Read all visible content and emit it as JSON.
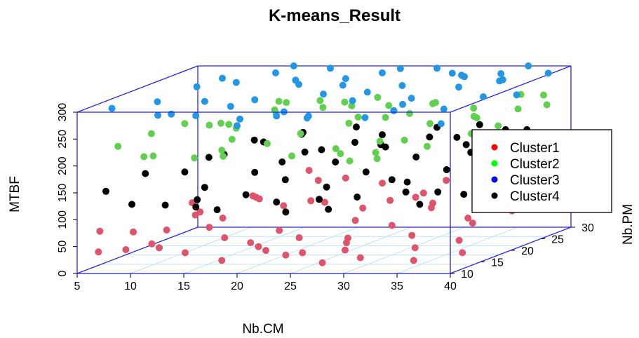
{
  "chart_data": {
    "type": "scatter",
    "title": "K-means_Result",
    "xlabel": "Nb.CM",
    "ylabel": "Nb.PM",
    "zlabel": "MTBF",
    "xlim": [
      5,
      40
    ],
    "ylim": [
      10,
      30
    ],
    "zlim": [
      0,
      300
    ],
    "x_ticks": [
      "5",
      "10",
      "15",
      "20",
      "25",
      "30",
      "35",
      "40"
    ],
    "y_ticks": [
      "10",
      "15",
      "20",
      "25",
      "30"
    ],
    "z_ticks": [
      "0",
      "50",
      "100",
      "150",
      "200",
      "250",
      "300"
    ],
    "grid": true,
    "legend_position": "right",
    "series": [
      {
        "name": "Cluster1",
        "color": "#df536b",
        "legend_color": "#ff0000",
        "points": [
          [
            6,
            12,
            70
          ],
          [
            8,
            14,
            60
          ],
          [
            9,
            11,
            40
          ],
          [
            10,
            16,
            55
          ],
          [
            11,
            13,
            35
          ],
          [
            12,
            18,
            80
          ],
          [
            13,
            20,
            60
          ],
          [
            14,
            12,
            30
          ],
          [
            15,
            22,
            90
          ],
          [
            16,
            15,
            45
          ],
          [
            17,
            19,
            100
          ],
          [
            18,
            11,
            20
          ],
          [
            19,
            24,
            75
          ],
          [
            20,
            17,
            50
          ],
          [
            21,
            13,
            30
          ],
          [
            22,
            21,
            85
          ],
          [
            23,
            15,
            45
          ],
          [
            24,
            27,
            95
          ],
          [
            25,
            12,
            30
          ],
          [
            26,
            19,
            60
          ],
          [
            27,
            23,
            80
          ],
          [
            28,
            14,
            40
          ],
          [
            29,
            25,
            85
          ],
          [
            30,
            18,
            55
          ],
          [
            31,
            11,
            25
          ],
          [
            32,
            21,
            75
          ],
          [
            33,
            16,
            45
          ],
          [
            34,
            26,
            95
          ],
          [
            35,
            13,
            35
          ],
          [
            36,
            20,
            60
          ],
          [
            37,
            24,
            80
          ],
          [
            38,
            15,
            40
          ],
          [
            39,
            22,
            65
          ],
          [
            40,
            12,
            30
          ],
          [
            13,
            25,
            80
          ],
          [
            18,
            27,
            100
          ],
          [
            22,
            10,
            50
          ],
          [
            26,
            29,
            60
          ],
          [
            30,
            27,
            100
          ],
          [
            34,
            29,
            80
          ],
          [
            38,
            28,
            100
          ],
          [
            16,
            29,
            110
          ],
          [
            24,
            11,
            30
          ],
          [
            9,
            22,
            80
          ],
          [
            11,
            19,
            70
          ],
          [
            28,
            10,
            20
          ],
          [
            31,
            23,
            75
          ],
          [
            36,
            11,
            20
          ],
          [
            20,
            28,
            100
          ],
          [
            14,
            16,
            60
          ],
          [
            27,
            16,
            40
          ],
          [
            33,
            28,
            110
          ],
          [
            37,
            19,
            55
          ],
          [
            29,
            12,
            35
          ],
          [
            25,
            22,
            70
          ],
          [
            19,
            14,
            40
          ],
          [
            12,
            10,
            55
          ],
          [
            7,
            10,
            40
          ],
          [
            17,
            23,
            70
          ],
          [
            35,
            27,
            85
          ]
        ]
      },
      {
        "name": "Cluster2",
        "color": "#61d04f",
        "legend_color": "#00ff00",
        "points": [
          [
            6,
            15,
            215
          ],
          [
            8,
            17,
            230
          ],
          [
            9,
            14,
            200
          ],
          [
            10,
            19,
            240
          ],
          [
            11,
            12,
            210
          ],
          [
            13,
            21,
            230
          ],
          [
            14,
            16,
            250
          ],
          [
            15,
            18,
            215
          ],
          [
            16,
            24,
            260
          ],
          [
            17,
            13,
            205
          ],
          [
            18,
            20,
            255
          ],
          [
            19,
            26,
            240
          ],
          [
            20,
            15,
            220
          ],
          [
            21,
            22,
            270
          ],
          [
            22,
            17,
            230
          ],
          [
            23,
            28,
            250
          ],
          [
            24,
            12,
            210
          ],
          [
            25,
            19,
            280
          ],
          [
            26,
            24,
            230
          ],
          [
            27,
            14,
            215
          ],
          [
            28,
            21,
            265
          ],
          [
            29,
            27,
            245
          ],
          [
            30,
            16,
            220
          ],
          [
            31,
            23,
            260
          ],
          [
            32,
            12,
            205
          ],
          [
            33,
            19,
            240
          ],
          [
            34,
            25,
            225
          ],
          [
            35,
            15,
            215
          ],
          [
            36,
            21,
            245
          ],
          [
            37,
            27,
            260
          ],
          [
            38,
            17,
            230
          ],
          [
            39,
            23,
            250
          ],
          [
            12,
            24,
            210
          ],
          [
            15,
            27,
            245
          ],
          [
            18,
            11,
            225
          ],
          [
            22,
            25,
            215
          ],
          [
            26,
            28,
            220
          ],
          [
            30,
            11,
            205
          ],
          [
            34,
            13,
            235
          ],
          [
            38,
            29,
            250
          ],
          [
            40,
            26,
            245
          ],
          [
            20,
            29,
            230
          ],
          [
            24,
            23,
            235
          ],
          [
            28,
            13,
            210
          ],
          [
            10,
            25,
            215
          ],
          [
            16,
            10,
            215
          ],
          [
            32,
            28,
            230
          ],
          [
            36,
            25,
            210
          ],
          [
            33,
            10,
            225
          ],
          [
            19,
            18,
            270
          ]
        ]
      },
      {
        "name": "Cluster3",
        "color": "#2297e6",
        "legend_color": "#0000ff",
        "points": [
          [
            6,
            14,
            290
          ],
          [
            8,
            18,
            285
          ],
          [
            10,
            21,
            300
          ],
          [
            11,
            15,
            275
          ],
          [
            12,
            24,
            295
          ],
          [
            13,
            17,
            290
          ],
          [
            14,
            27,
            300
          ],
          [
            15,
            12,
            285
          ],
          [
            16,
            20,
            280
          ],
          [
            17,
            25,
            295
          ],
          [
            18,
            14,
            270
          ],
          [
            19,
            22,
            300
          ],
          [
            20,
            28,
            285
          ],
          [
            21,
            16,
            275
          ],
          [
            22,
            24,
            290
          ],
          [
            23,
            19,
            295
          ],
          [
            24,
            27,
            300
          ],
          [
            25,
            13,
            280
          ],
          [
            26,
            21,
            290
          ],
          [
            27,
            25,
            285
          ],
          [
            28,
            15,
            300
          ],
          [
            29,
            23,
            270
          ],
          [
            30,
            28,
            295
          ],
          [
            31,
            18,
            280
          ],
          [
            32,
            26,
            300
          ],
          [
            33,
            13,
            290
          ],
          [
            34,
            22,
            295
          ],
          [
            35,
            27,
            285
          ],
          [
            36,
            16,
            280
          ],
          [
            37,
            24,
            300
          ],
          [
            38,
            19,
            290
          ],
          [
            39,
            28,
            295
          ],
          [
            40,
            21,
            285
          ],
          [
            18,
            29,
            300
          ],
          [
            24,
            30,
            295
          ],
          [
            30,
            30,
            280
          ],
          [
            36,
            30,
            300
          ],
          [
            20,
            10,
            275
          ],
          [
            26,
            11,
            285
          ],
          [
            32,
            10,
            290
          ],
          [
            14,
            30,
            300
          ],
          [
            9,
            27,
            290
          ],
          [
            28,
            29,
            300
          ],
          [
            34,
            29,
            290
          ],
          [
            16,
            16,
            285
          ],
          [
            22,
            13,
            280
          ],
          [
            12,
            11,
            290
          ],
          [
            38,
            12,
            270
          ]
        ]
      },
      {
        "name": "Cluster4",
        "color": "#000000",
        "legend_color": "#000000",
        "points": [
          [
            6,
            13,
            140
          ],
          [
            8,
            16,
            160
          ],
          [
            9,
            12,
            120
          ],
          [
            10,
            19,
            150
          ],
          [
            11,
            14,
            110
          ],
          [
            12,
            22,
            170
          ],
          [
            13,
            17,
            130
          ],
          [
            14,
            25,
            180
          ],
          [
            15,
            12,
            115
          ],
          [
            16,
            20,
            145
          ],
          [
            17,
            26,
            190
          ],
          [
            18,
            15,
            125
          ],
          [
            19,
            23,
            170
          ],
          [
            20,
            18,
            140
          ],
          [
            21,
            28,
            195
          ],
          [
            22,
            13,
            120
          ],
          [
            23,
            21,
            160
          ],
          [
            24,
            27,
            185
          ],
          [
            25,
            16,
            135
          ],
          [
            26,
            24,
            175
          ],
          [
            27,
            19,
            150
          ],
          [
            28,
            29,
            190
          ],
          [
            29,
            14,
            125
          ],
          [
            30,
            22,
            165
          ],
          [
            31,
            27,
            180
          ],
          [
            32,
            17,
            140
          ],
          [
            33,
            25,
            175
          ],
          [
            34,
            20,
            150
          ],
          [
            35,
            28,
            190
          ],
          [
            36,
            15,
            130
          ],
          [
            37,
            23,
            165
          ],
          [
            38,
            18,
            145
          ],
          [
            39,
            26,
            180
          ],
          [
            40,
            21,
            155
          ],
          [
            14,
            14,
            120
          ],
          [
            18,
            21,
            160
          ],
          [
            22,
            26,
            175
          ],
          [
            26,
            13,
            125
          ],
          [
            30,
            18,
            140
          ],
          [
            34,
            24,
            165
          ],
          [
            38,
            27,
            180
          ],
          [
            16,
            28,
            185
          ],
          [
            24,
            11,
            110
          ],
          [
            32,
            29,
            195
          ],
          [
            12,
            27,
            175
          ],
          [
            28,
            11,
            115
          ],
          [
            36,
            12,
            120
          ],
          [
            20,
            24,
            170
          ],
          [
            10,
            23,
            160
          ],
          [
            39,
            14,
            130
          ],
          [
            33,
            15,
            130
          ],
          [
            25,
            25,
            175
          ],
          [
            17,
            12,
            110
          ],
          [
            29,
            26,
            185
          ],
          [
            37,
            28,
            190
          ]
        ]
      }
    ]
  }
}
